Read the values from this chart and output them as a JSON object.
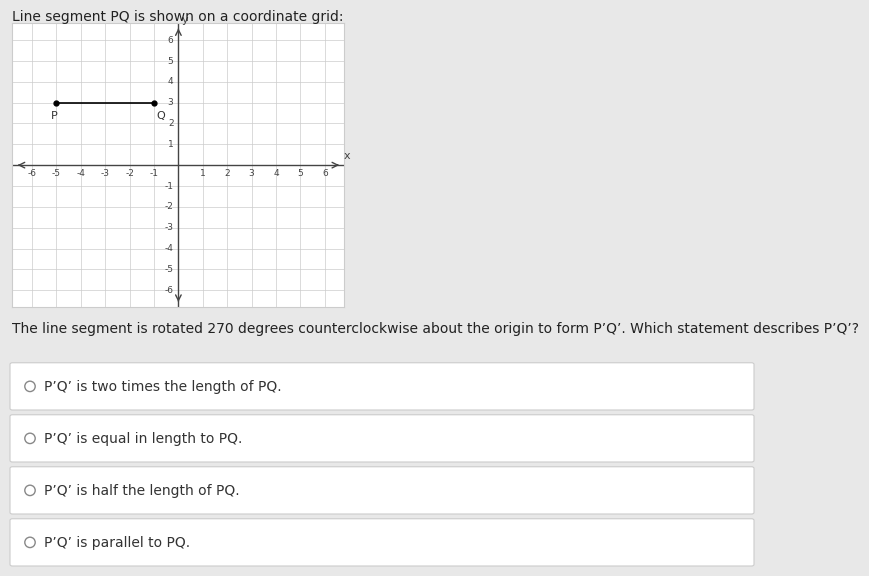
{
  "title": "Line segment PQ is shown on a coordinate grid:",
  "P": [
    -5,
    3
  ],
  "Q": [
    -1,
    3
  ],
  "grid_range": [
    -6,
    6
  ],
  "point_color": "#000000",
  "line_color": "#000000",
  "background_color": "#e8e8e8",
  "plot_bg": "#ffffff",
  "plot_border": "#cccccc",
  "question_text": "The line segment is rotated 270 degrees counterclockwise about the origin to form P’Q’. Which statement describes P’Q’?",
  "options": [
    "P’Q’ is two times the length of PQ.",
    "P’Q’ is equal in length to PQ.",
    "P’Q’ is half the length of PQ.",
    "P’Q’ is parallel to PQ."
  ],
  "option_circle_color": "#888888",
  "option_box_bg": "#ffffff",
  "option_box_border": "#cccccc",
  "title_fontsize": 10,
  "tick_fontsize": 6.5,
  "label_fontsize": 8,
  "question_fontsize": 10,
  "option_fontsize": 10,
  "axis_color": "#444444",
  "grid_color": "#cccccc",
  "text_color": "#333333"
}
